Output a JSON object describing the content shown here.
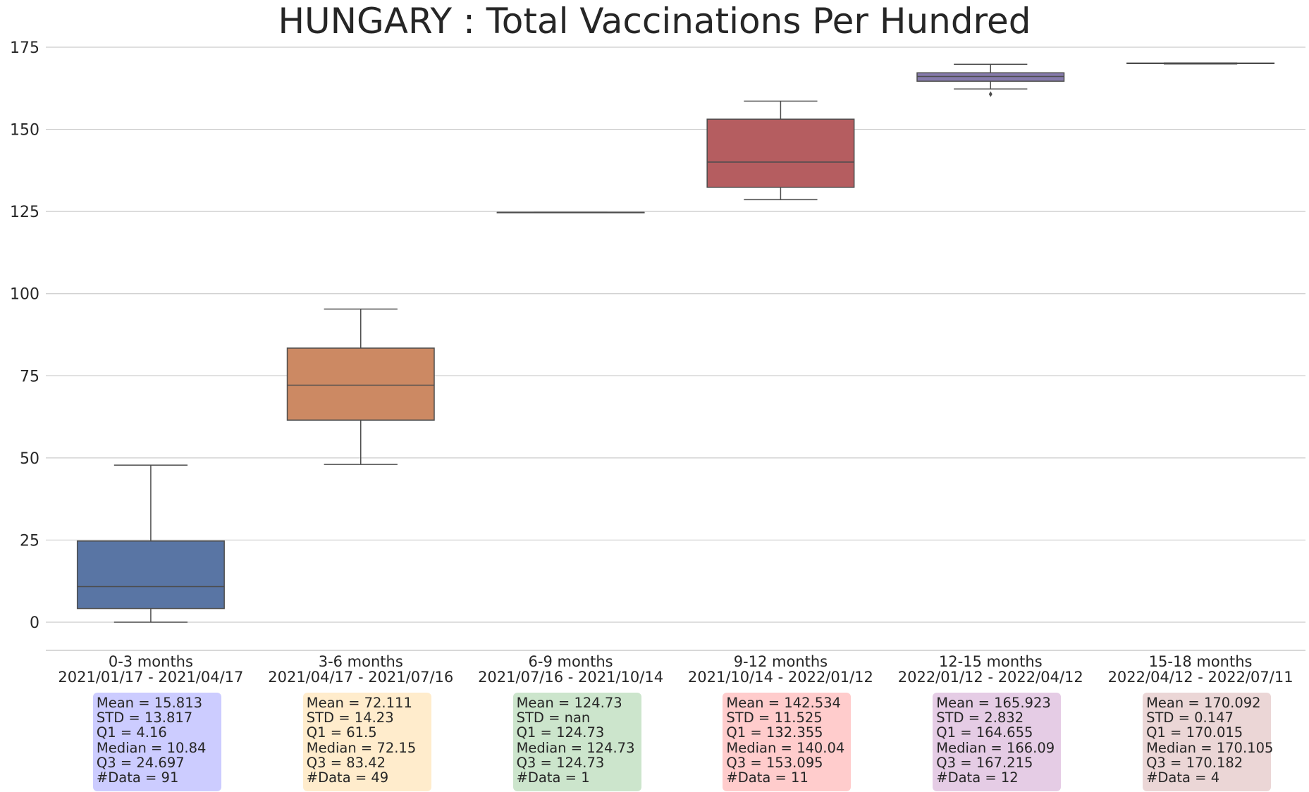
{
  "title": "HUNGARY : Total Vaccinations Per Hundred",
  "chart_data": {
    "type": "box",
    "title": "HUNGARY : Total Vaccinations Per Hundred",
    "xlabel": "",
    "ylabel": "",
    "ylim": [
      -8,
      178
    ],
    "yticks": [
      0,
      25,
      50,
      75,
      100,
      125,
      150,
      175
    ],
    "grid": "horizontal",
    "categories": [
      {
        "name": "0-3 months",
        "range": "2021/01/17 - 2021/04/17"
      },
      {
        "name": "3-6 months",
        "range": "2021/04/17 - 2021/07/16"
      },
      {
        "name": "6-9 months",
        "range": "2021/07/16 - 2021/10/14"
      },
      {
        "name": "9-12 months",
        "range": "2021/10/14 - 2022/01/12"
      },
      {
        "name": "12-15 months",
        "range": "2022/01/12 - 2022/04/12"
      },
      {
        "name": "15-18 months",
        "range": "2022/04/12 - 2022/07/11"
      }
    ],
    "boxes": [
      {
        "whisker_low": 0.0,
        "q1": 4.16,
        "median": 10.84,
        "q3": 24.697,
        "whisker_high": 47.8,
        "outliers": [],
        "color": "#5975a4"
      },
      {
        "whisker_low": 48.0,
        "q1": 61.5,
        "median": 72.15,
        "q3": 83.42,
        "whisker_high": 95.3,
        "outliers": [],
        "color": "#cc8963"
      },
      {
        "whisker_low": 124.73,
        "q1": 124.73,
        "median": 124.73,
        "q3": 124.73,
        "whisker_high": 124.73,
        "outliers": [],
        "color": "#5f9e6e"
      },
      {
        "whisker_low": 128.6,
        "q1": 132.355,
        "median": 140.04,
        "q3": 153.095,
        "whisker_high": 158.6,
        "outliers": [],
        "color": "#b55d60"
      },
      {
        "whisker_low": 162.3,
        "q1": 164.655,
        "median": 166.09,
        "q3": 167.215,
        "whisker_high": 169.8,
        "outliers": [
          160.7
        ],
        "color": "#857aab"
      },
      {
        "whisker_low": 169.9,
        "q1": 170.015,
        "median": 170.105,
        "q3": 170.182,
        "whisker_high": 170.2,
        "outliers": [],
        "color": "#8d7866"
      }
    ],
    "stats": [
      {
        "lines": [
          "Mean = 15.813",
          "STD = 13.817",
          "Q1 = 4.16",
          "Median = 10.84",
          "Q3 = 24.697",
          "#Data = 91"
        ],
        "bg": "#ccccff"
      },
      {
        "lines": [
          "Mean = 72.111",
          "STD = 14.23",
          "Q1 = 61.5",
          "Median = 72.15",
          "Q3 = 83.42",
          "#Data = 49"
        ],
        "bg": "#ffeccc"
      },
      {
        "lines": [
          "Mean = 124.73",
          "STD = nan",
          "Q1 = 124.73",
          "Median = 124.73",
          "Q3 = 124.73",
          "#Data = 1"
        ],
        "bg": "#cce5cc"
      },
      {
        "lines": [
          "Mean = 142.534",
          "STD = 11.525",
          "Q1 = 132.355",
          "Median = 140.04",
          "Q3 = 153.095",
          "#Data = 11"
        ],
        "bg": "#ffcccc"
      },
      {
        "lines": [
          "Mean = 165.923",
          "STD = 2.832",
          "Q1 = 164.655",
          "Median = 166.09",
          "Q3 = 167.215",
          "#Data = 12"
        ],
        "bg": "#e5cce5"
      },
      {
        "lines": [
          "Mean = 170.092",
          "STD = 0.147",
          "Q1 = 170.015",
          "Median = 170.105",
          "Q3 = 170.182",
          "#Data = 4"
        ],
        "bg": "#ebd6d6"
      }
    ]
  }
}
